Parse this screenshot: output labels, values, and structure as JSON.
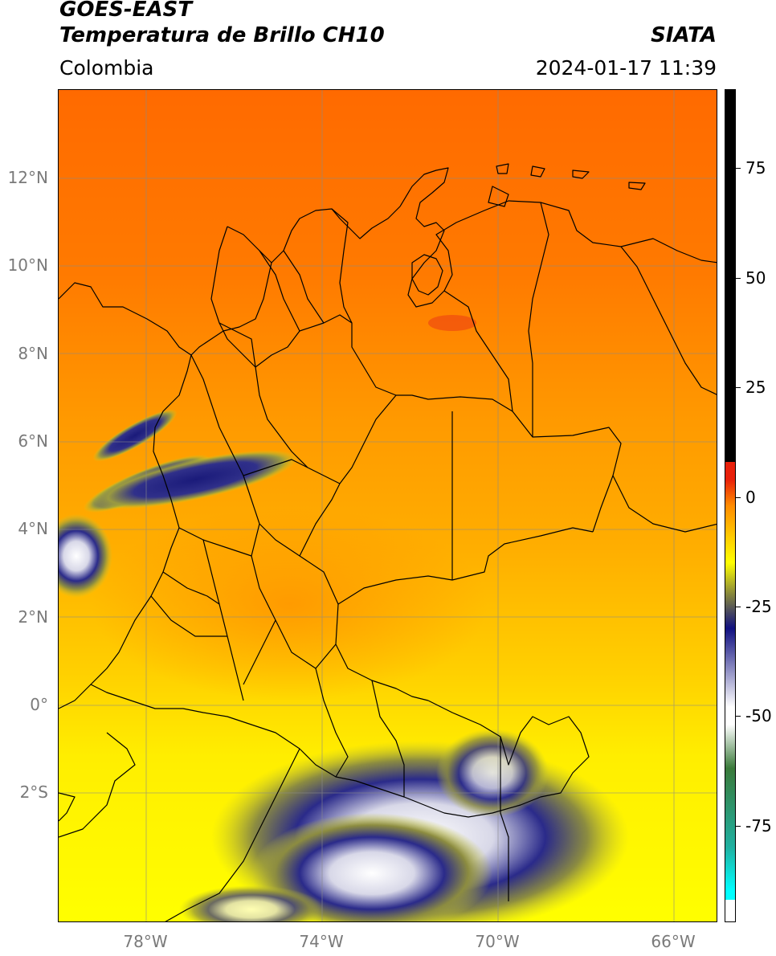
{
  "header": {
    "satellite": "GOES-EAST",
    "product": "Temperatura de Brillo CH10",
    "region": "Colombia",
    "source": "SIATA",
    "datetime": "2024-01-17 11:39"
  },
  "map": {
    "lat_ticks": [
      "12°N",
      "10°N",
      "8°N",
      "6°N",
      "4°N",
      "2°N",
      "0°",
      "2°S"
    ],
    "lon_ticks": [
      "78°W",
      "74°W",
      "70°W",
      "66°W"
    ],
    "lon_range": [
      -80,
      -65
    ],
    "lat_range": [
      -5,
      14
    ]
  },
  "colorbar": {
    "ticks": [
      "75",
      "50",
      "25",
      "0",
      "-25",
      "-50",
      "-75"
    ],
    "tick_values": [
      75,
      50,
      25,
      0,
      -25,
      -50,
      -75
    ],
    "range": [
      -97,
      93
    ],
    "colors": {
      "warm_top": "#000000",
      "red": "#e8200a",
      "orange": "#ff8c00",
      "yellow": "#ffff00",
      "olive": "#8a8a3a",
      "navy": "#101080",
      "white": "#ffffff",
      "green": "#3a7a3a",
      "teal": "#20b0a0",
      "cyan": "#00ffff"
    }
  },
  "icons": [
    "map-graticule",
    "colorbar"
  ]
}
